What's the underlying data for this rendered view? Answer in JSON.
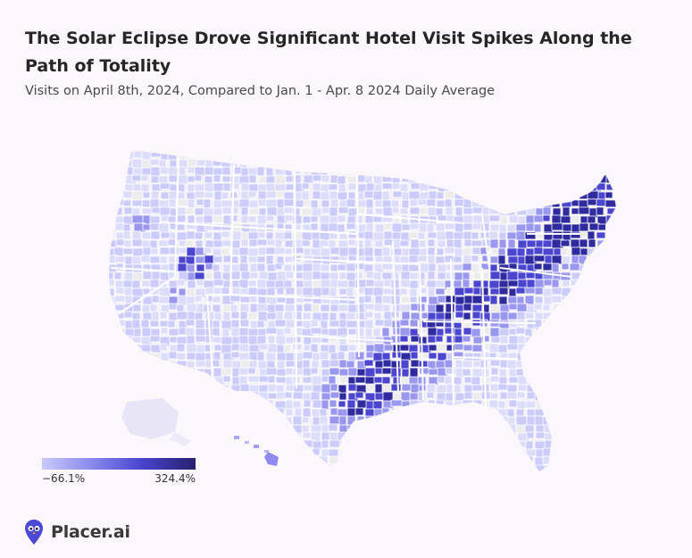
{
  "title": "The Solar Eclipse Drove Significant Hotel Visit Spikes Along the Path of Totality",
  "subtitle": "Visits on April 8th, 2024, Compared to Jan. 1 - Apr. 8 2024 Daily Average",
  "legend": {
    "min_label": "−66.1%",
    "max_label": "324.4%",
    "colors": [
      "#c9c9fb",
      "#8e8ef0",
      "#4a44cf",
      "#25206e"
    ]
  },
  "map": {
    "region": "United States counties",
    "colors": {
      "low": "#ccccfa",
      "mid": "#9a97ee",
      "high": "#4b45d0",
      "very_high": "#2f2a9e",
      "no_data": "#ececec",
      "border": "#ffffff",
      "background": "#f2f0f5"
    }
  },
  "brand": {
    "name": "Placer.ai",
    "logo_color": "#4c48d6"
  }
}
